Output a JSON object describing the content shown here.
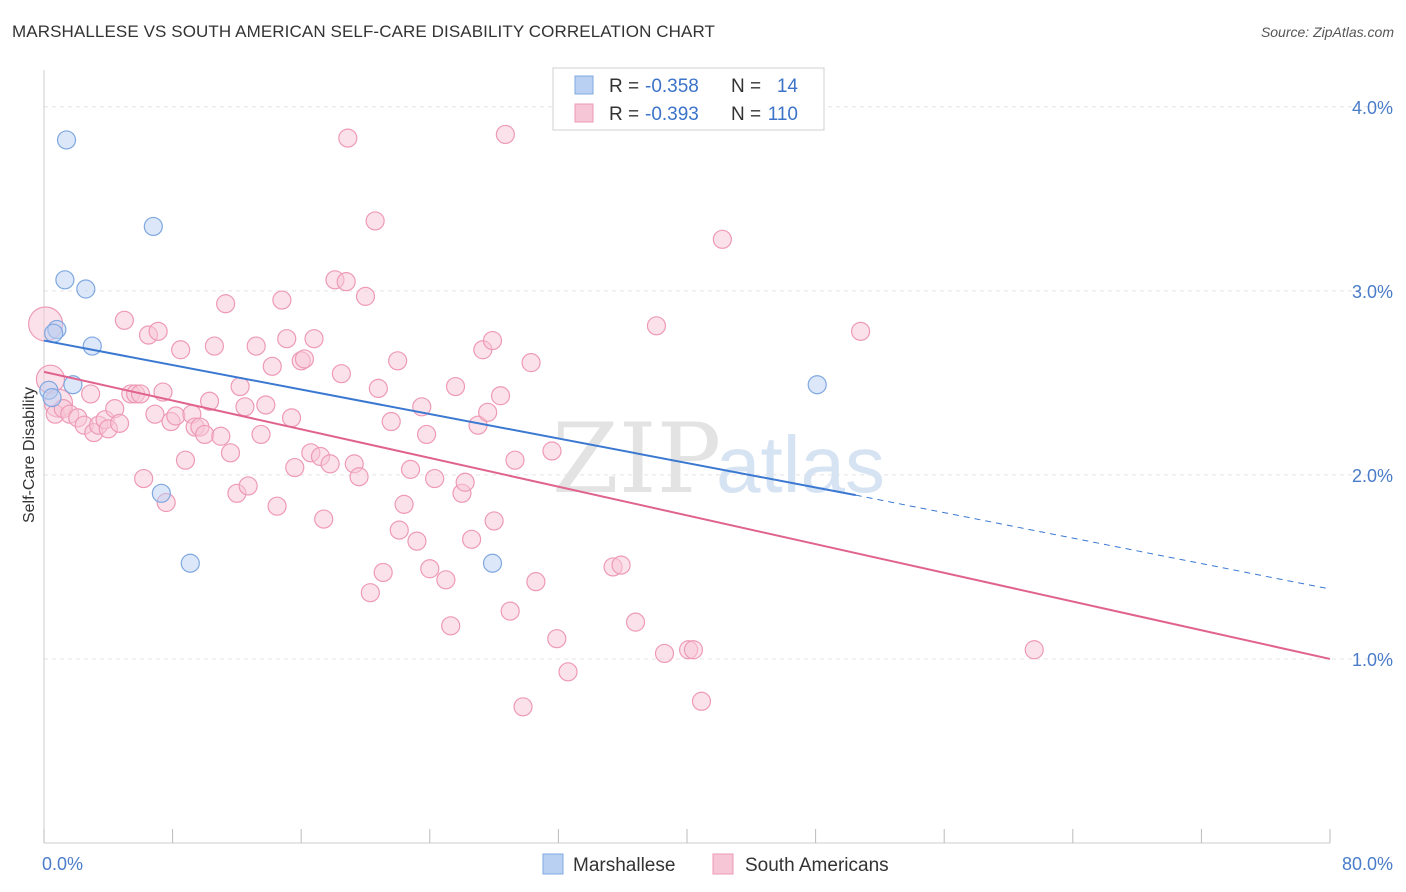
{
  "title": "MARSHALLESE VS SOUTH AMERICAN SELF-CARE DISABILITY CORRELATION CHART",
  "source": "Source: ZipAtlas.com",
  "chart_data": {
    "type": "scatter",
    "ylabel": "Self-Care Disability",
    "xlim": [
      0,
      80
    ],
    "ylim": [
      0,
      4.2
    ],
    "x_tick_labels": [
      {
        "value": 0,
        "label": "0.0%"
      },
      {
        "value": 80,
        "label": "80.0%"
      }
    ],
    "y_ticks": [
      {
        "value": 1.0,
        "label": "1.0%"
      },
      {
        "value": 2.0,
        "label": "2.0%"
      },
      {
        "value": 3.0,
        "label": "3.0%"
      },
      {
        "value": 4.0,
        "label": "4.0%"
      }
    ],
    "grid": true,
    "legend_position": "top-center",
    "watermark": {
      "zip": "ZIP",
      "atlas": "atlas"
    },
    "legend": [
      {
        "r_label": "R =",
        "r": "-0.358",
        "n_label": "N =",
        "n": "14"
      },
      {
        "r_label": "R =",
        "r": "-0.393",
        "n_label": "N =",
        "n": "110"
      }
    ],
    "series": [
      {
        "name": "Marshallese",
        "color": "#7fa8e0",
        "fill": "#b9d0f3",
        "line_color": "#3a78d1",
        "trend": {
          "x0": 0,
          "y0": 2.73,
          "x1": 50.5,
          "y1": 1.89,
          "dash_to_x": 80,
          "dash_to_y": 1.38
        },
        "points": [
          {
            "x": 1.4,
            "y": 3.82
          },
          {
            "x": 6.8,
            "y": 3.35
          },
          {
            "x": 1.3,
            "y": 3.06
          },
          {
            "x": 2.6,
            "y": 3.01
          },
          {
            "x": 0.8,
            "y": 2.79
          },
          {
            "x": 0.6,
            "y": 2.77
          },
          {
            "x": 3.0,
            "y": 2.7
          },
          {
            "x": 1.8,
            "y": 2.49
          },
          {
            "x": 0.3,
            "y": 2.46
          },
          {
            "x": 0.5,
            "y": 2.42
          },
          {
            "x": 7.3,
            "y": 1.9
          },
          {
            "x": 9.1,
            "y": 1.52
          },
          {
            "x": 27.9,
            "y": 1.52
          },
          {
            "x": 48.1,
            "y": 2.49
          }
        ]
      },
      {
        "name": "South Americans",
        "color": "#ee9ab5",
        "fill": "#f7c6d6",
        "line_color": "#e0638d",
        "trend": {
          "x0": 0,
          "y0": 2.56,
          "x1": 80,
          "y1": 1.0
        },
        "points": [
          {
            "x": 0.1,
            "y": 2.82
          },
          {
            "x": 0.4,
            "y": 2.52
          },
          {
            "x": 0.9,
            "y": 2.39
          },
          {
            "x": 0.7,
            "y": 2.33
          },
          {
            "x": 1.2,
            "y": 2.36
          },
          {
            "x": 1.6,
            "y": 2.33
          },
          {
            "x": 2.1,
            "y": 2.31
          },
          {
            "x": 2.5,
            "y": 2.27
          },
          {
            "x": 2.9,
            "y": 2.44
          },
          {
            "x": 3.1,
            "y": 2.23
          },
          {
            "x": 3.4,
            "y": 2.27
          },
          {
            "x": 3.8,
            "y": 2.3
          },
          {
            "x": 4.0,
            "y": 2.25
          },
          {
            "x": 4.4,
            "y": 2.36
          },
          {
            "x": 4.7,
            "y": 2.28
          },
          {
            "x": 5.0,
            "y": 2.84
          },
          {
            "x": 5.4,
            "y": 2.44
          },
          {
            "x": 5.7,
            "y": 2.44
          },
          {
            "x": 6.0,
            "y": 2.44
          },
          {
            "x": 6.2,
            "y": 1.98
          },
          {
            "x": 6.5,
            "y": 2.76
          },
          {
            "x": 6.9,
            "y": 2.33
          },
          {
            "x": 7.1,
            "y": 2.78
          },
          {
            "x": 7.4,
            "y": 2.45
          },
          {
            "x": 7.6,
            "y": 1.85
          },
          {
            "x": 7.9,
            "y": 2.29
          },
          {
            "x": 8.2,
            "y": 2.32
          },
          {
            "x": 8.5,
            "y": 2.68
          },
          {
            "x": 8.8,
            "y": 2.08
          },
          {
            "x": 9.2,
            "y": 2.33
          },
          {
            "x": 9.4,
            "y": 2.26
          },
          {
            "x": 9.7,
            "y": 2.26
          },
          {
            "x": 10.0,
            "y": 2.22
          },
          {
            "x": 10.3,
            "y": 2.4
          },
          {
            "x": 10.6,
            "y": 2.7
          },
          {
            "x": 11.0,
            "y": 2.21
          },
          {
            "x": 11.3,
            "y": 2.93
          },
          {
            "x": 11.6,
            "y": 2.12
          },
          {
            "x": 12.0,
            "y": 1.9
          },
          {
            "x": 12.2,
            "y": 2.48
          },
          {
            "x": 12.5,
            "y": 2.37
          },
          {
            "x": 12.7,
            "y": 1.94
          },
          {
            "x": 13.2,
            "y": 2.7
          },
          {
            "x": 13.5,
            "y": 2.22
          },
          {
            "x": 13.8,
            "y": 2.38
          },
          {
            "x": 14.2,
            "y": 2.59
          },
          {
            "x": 14.5,
            "y": 1.83
          },
          {
            "x": 14.8,
            "y": 2.95
          },
          {
            "x": 15.1,
            "y": 2.74
          },
          {
            "x": 15.4,
            "y": 2.31
          },
          {
            "x": 15.6,
            "y": 2.04
          },
          {
            "x": 16.0,
            "y": 2.62
          },
          {
            "x": 16.2,
            "y": 2.63
          },
          {
            "x": 16.6,
            "y": 2.12
          },
          {
            "x": 16.8,
            "y": 2.74
          },
          {
            "x": 17.2,
            "y": 2.1
          },
          {
            "x": 17.4,
            "y": 1.76
          },
          {
            "x": 17.8,
            "y": 2.06
          },
          {
            "x": 18.1,
            "y": 3.06
          },
          {
            "x": 18.5,
            "y": 2.55
          },
          {
            "x": 18.8,
            "y": 3.05
          },
          {
            "x": 18.9,
            "y": 3.83
          },
          {
            "x": 19.3,
            "y": 2.06
          },
          {
            "x": 19.6,
            "y": 1.99
          },
          {
            "x": 20.0,
            "y": 2.97
          },
          {
            "x": 20.3,
            "y": 1.36
          },
          {
            "x": 20.6,
            "y": 3.38
          },
          {
            "x": 20.8,
            "y": 2.47
          },
          {
            "x": 21.1,
            "y": 1.47
          },
          {
            "x": 21.6,
            "y": 2.29
          },
          {
            "x": 22.0,
            "y": 2.62
          },
          {
            "x": 22.1,
            "y": 1.7
          },
          {
            "x": 22.4,
            "y": 1.84
          },
          {
            "x": 22.8,
            "y": 2.03
          },
          {
            "x": 23.2,
            "y": 1.64
          },
          {
            "x": 23.5,
            "y": 2.37
          },
          {
            "x": 23.8,
            "y": 2.22
          },
          {
            "x": 24.0,
            "y": 1.49
          },
          {
            "x": 24.3,
            "y": 1.98
          },
          {
            "x": 25.0,
            "y": 1.43
          },
          {
            "x": 25.3,
            "y": 1.18
          },
          {
            "x": 25.6,
            "y": 2.48
          },
          {
            "x": 26.0,
            "y": 1.9
          },
          {
            "x": 26.2,
            "y": 1.96
          },
          {
            "x": 26.6,
            "y": 1.65
          },
          {
            "x": 27.0,
            "y": 2.27
          },
          {
            "x": 27.3,
            "y": 2.68
          },
          {
            "x": 27.6,
            "y": 2.34
          },
          {
            "x": 27.9,
            "y": 2.73
          },
          {
            "x": 28.0,
            "y": 1.75
          },
          {
            "x": 28.4,
            "y": 2.43
          },
          {
            "x": 28.7,
            "y": 3.85
          },
          {
            "x": 29.0,
            "y": 1.26
          },
          {
            "x": 29.3,
            "y": 2.08
          },
          {
            "x": 29.8,
            "y": 0.74
          },
          {
            "x": 30.3,
            "y": 2.61
          },
          {
            "x": 30.6,
            "y": 1.42
          },
          {
            "x": 31.6,
            "y": 2.13
          },
          {
            "x": 31.9,
            "y": 1.11
          },
          {
            "x": 32.6,
            "y": 0.93
          },
          {
            "x": 35.4,
            "y": 1.5
          },
          {
            "x": 35.9,
            "y": 1.51
          },
          {
            "x": 36.8,
            "y": 1.2
          },
          {
            "x": 38.1,
            "y": 2.81
          },
          {
            "x": 38.6,
            "y": 1.03
          },
          {
            "x": 40.1,
            "y": 1.05
          },
          {
            "x": 40.4,
            "y": 1.05
          },
          {
            "x": 40.9,
            "y": 0.77
          },
          {
            "x": 42.2,
            "y": 3.28
          },
          {
            "x": 50.8,
            "y": 2.78
          },
          {
            "x": 61.6,
            "y": 1.05
          }
        ]
      }
    ]
  }
}
